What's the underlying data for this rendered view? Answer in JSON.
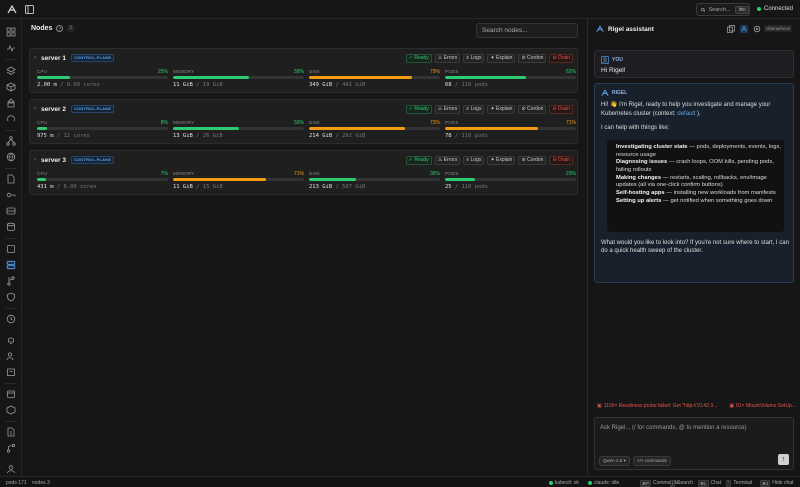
{
  "topbar": {
    "search_label": "Search...",
    "search_shortcut": "⌘K",
    "connection_status": "Connected"
  },
  "main": {
    "title": "Nodes",
    "node_count": "3",
    "search_placeholder": "Search nodes...",
    "nodes": [
      {
        "name": "server 1",
        "role": "CONTROL-PLANE",
        "status": "Ready",
        "cpu": {
          "label": "CPU",
          "pct": "25%",
          "fraction": 0.25,
          "value": "2.00",
          "unit": " m",
          "total": " / 8.00 cores"
        },
        "memory": {
          "label": "MEMORY",
          "pct": "58%",
          "fraction": 0.58,
          "value": "11 GiB",
          "total": " / 19 GiB"
        },
        "disk": {
          "label": "DISK",
          "pct": "79%",
          "fraction": 0.79,
          "value": "349 GiB",
          "total": " / 441 GiB"
        },
        "pods": {
          "label": "PODS",
          "pct": "62%",
          "fraction": 0.62,
          "value": "68",
          "total": " / 110 pods"
        }
      },
      {
        "name": "server 2",
        "role": "CONTROL-PLANE",
        "status": "Ready",
        "cpu": {
          "label": "CPU",
          "pct": "8%",
          "fraction": 0.08,
          "value": "975",
          "unit": " m",
          "total": " / 12 cores"
        },
        "memory": {
          "label": "MEMORY",
          "pct": "50%",
          "fraction": 0.5,
          "value": "13 GiB",
          "total": " / 26 GiB"
        },
        "disk": {
          "label": "DISK",
          "pct": "73%",
          "fraction": 0.73,
          "value": "214 GiB",
          "total": " / 292 GiB"
        },
        "pods": {
          "label": "PODS",
          "pct": "71%",
          "fraction": 0.71,
          "value": "78",
          "total": " / 110 pods"
        }
      },
      {
        "name": "server 3",
        "role": "CONTROL-PLANE",
        "status": "Ready",
        "cpu": {
          "label": "CPU",
          "pct": "7%",
          "fraction": 0.07,
          "value": "431",
          "unit": " m",
          "total": " / 6.00 cores"
        },
        "memory": {
          "label": "MEMORY",
          "pct": "71%",
          "fraction": 0.71,
          "value": "11 GiB",
          "total": " / 15 GiB"
        },
        "disk": {
          "label": "DISK",
          "pct": "36%",
          "fraction": 0.36,
          "value": "213 GiB",
          "total": " / 587 GiB"
        },
        "pods": {
          "label": "PODS",
          "pct": "23%",
          "fraction": 0.23,
          "value": "25",
          "total": " / 110 pods"
        }
      }
    ],
    "actions": {
      "logs": "Logs",
      "errors": "Errors",
      "explain": "Explain",
      "cordon": "Cordon",
      "drain": "Drain"
    }
  },
  "assistant": {
    "title": "Rigel assistant",
    "model_badge": "ollama/local",
    "user_label": "YOU",
    "user_message": "Hi Rigel!",
    "bot_label": "RIGEL",
    "intro_line1": "Hi! 👋 I'm Rigel, ready to help you investigate and manage your",
    "intro_line2_pre": "Kubernetes cluster (context: ",
    "context_name": "default",
    "intro_line2_post": " ).",
    "capabilities_intro": "I can help with things like:",
    "capabilities": [
      {
        "title": "Investigating cluster state",
        "desc": " — pods, deployments, events, logs, resource usage"
      },
      {
        "title": "Diagnosing issues",
        "desc": " — crash loops, OOM kills, pending pods, failing rollouts"
      },
      {
        "title": "Making changes",
        "desc": " — restarts, scaling, rollbacks, env/image updates (all via one-click confirm buttons)"
      },
      {
        "title": "Self-hosting apps",
        "desc": " — installing new workloads from manifests"
      },
      {
        "title": "Setting up alerts",
        "desc": " — get notified when something goes down"
      }
    ],
    "closing": "What would you like to look into? If you're not sure where to start, I can do a quick health sweep of the cluster.",
    "alerts": [
      "1100× Readiness probe failed: Get \"http://10.42.3...",
      "81× MountVolume.SetUp..."
    ],
    "input_placeholder": "Ask Rigel...  (/ for commands, @ to mention a resource)",
    "model_pill": "Qwen 3.6",
    "commands_pill": "</> commands",
    "send_glyph": "↑"
  },
  "statusbar": {
    "pods": "pods 171",
    "nodes": "nodes 3",
    "kubectl": "kubectl: ok",
    "claude": "claude: idle",
    "shortcuts": [
      {
        "key": "⌘P",
        "label": "Commands"
      },
      {
        "key": "/",
        "label": "Search"
      },
      {
        "key": "⌘L",
        "label": "Chat"
      },
      {
        "key": "`",
        "label": "Terminal"
      },
      {
        "key": "⌘J",
        "label": "Hide chat"
      }
    ]
  },
  "colors": {
    "green": "#2ecc71",
    "orange": "#f39c12",
    "red": "#e5534b",
    "blue": "#5aa3e8"
  }
}
